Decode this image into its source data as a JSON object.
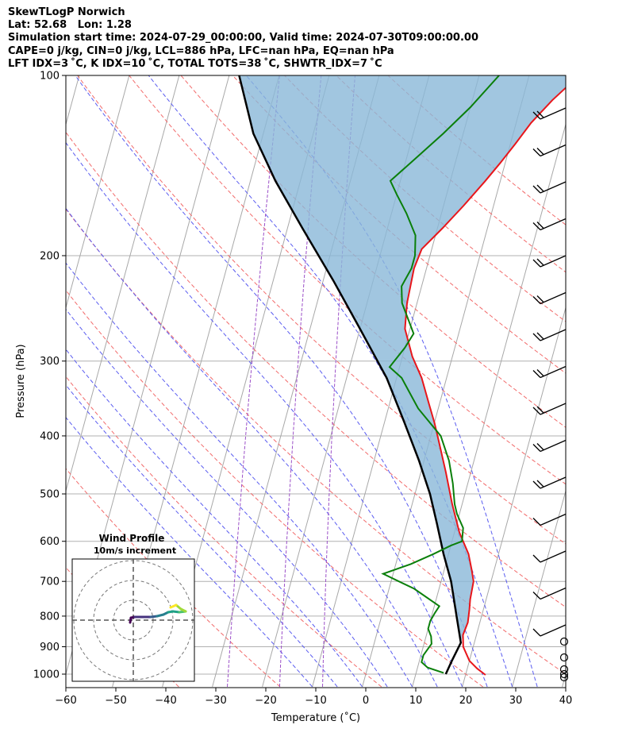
{
  "header": {
    "title": "SkewTLogP Norwich",
    "location": "Lat: 52.68   Lon: 1.28",
    "times": "Simulation start time: 2024-07-29_00:00:00, Valid time: 2024-07-30T09:00:00.00",
    "indices1": "CAPE=0 j/kg, CIN=0 j/kg, LCL=886 hPa, LFC=nan hPa, EQ=nan hPa",
    "indices2": "LFT IDX=3 ˚C, K IDX=10 ˚C, TOTAL TOTS=38 ˚C, SHWTR_IDX=7 ˚C"
  },
  "chart_data": {
    "type": "line",
    "title": "SkewTLogP Norwich",
    "xlabel": "Temperature (˚C)",
    "ylabel": "Pressure (hPa)",
    "xlim": [
      -60,
      40
    ],
    "ylim": [
      1050,
      100
    ],
    "y_scale": "log",
    "x_ticks": [
      "−60",
      "−50",
      "−40",
      "−30",
      "−20",
      "−10",
      "0",
      "10",
      "20",
      "30",
      "40"
    ],
    "x_tick_values": [
      -60,
      -50,
      -40,
      -30,
      -20,
      -10,
      0,
      10,
      20,
      30,
      40
    ],
    "y_ticks": [
      1000,
      900,
      800,
      700,
      600,
      500,
      400,
      300,
      200,
      100
    ],
    "grid": true,
    "series": [
      {
        "kind": "temperature",
        "color": "#e8161b",
        "points": [
          [
            24,
            1003
          ],
          [
            22,
            979
          ],
          [
            20,
            950
          ],
          [
            18,
            900
          ],
          [
            17.3,
            860
          ],
          [
            17.6,
            820
          ],
          [
            17.2,
            780
          ],
          [
            16.8,
            750
          ],
          [
            16.5,
            700
          ],
          [
            15.5,
            670
          ],
          [
            14,
            630
          ],
          [
            11,
            580
          ],
          [
            8,
            520
          ],
          [
            5,
            460
          ],
          [
            2,
            410
          ],
          [
            0,
            380
          ],
          [
            -2,
            355
          ],
          [
            -5,
            320
          ],
          [
            -8,
            295
          ],
          [
            -11,
            265
          ],
          [
            -12,
            240
          ],
          [
            -12.5,
            210
          ],
          [
            -12,
            195
          ],
          [
            -9,
            180
          ],
          [
            -6,
            165
          ],
          [
            -3,
            150
          ],
          [
            -1,
            140
          ],
          [
            1,
            130
          ],
          [
            3,
            120
          ],
          [
            6,
            110
          ],
          [
            10,
            100
          ]
        ]
      },
      {
        "kind": "dewpoint",
        "color": "#0a7f0a",
        "points": [
          [
            15.5,
            995
          ],
          [
            12,
            975
          ],
          [
            10.5,
            955
          ],
          [
            10.5,
            930
          ],
          [
            11.5,
            890
          ],
          [
            11,
            865
          ],
          [
            10,
            840
          ],
          [
            10,
            815
          ],
          [
            10.5,
            790
          ],
          [
            11,
            770
          ],
          [
            5,
            720
          ],
          [
            -2,
            680
          ],
          [
            3,
            655
          ],
          [
            7,
            630
          ],
          [
            10,
            610
          ],
          [
            12,
            600
          ],
          [
            11.5,
            570
          ],
          [
            9.5,
            540
          ],
          [
            8.5,
            520
          ],
          [
            7,
            480
          ],
          [
            5,
            440
          ],
          [
            2,
            400
          ],
          [
            -4,
            360
          ],
          [
            -9,
            320
          ],
          [
            -12,
            307
          ],
          [
            -10,
            285
          ],
          [
            -9,
            270
          ],
          [
            -13,
            240
          ],
          [
            -14,
            225
          ],
          [
            -13,
            210
          ],
          [
            -13,
            200
          ],
          [
            -14,
            185
          ],
          [
            -17,
            170
          ],
          [
            -20,
            158
          ],
          [
            -22,
            150
          ],
          [
            -18,
            137
          ],
          [
            -14,
            125
          ],
          [
            -10,
            113
          ],
          [
            -6,
            100
          ]
        ]
      },
      {
        "kind": "parcel",
        "color": "#000000",
        "points": [
          [
            16,
            1000
          ],
          [
            16.5,
            950
          ],
          [
            17.3,
            886
          ],
          [
            15,
            800
          ],
          [
            12,
            700
          ],
          [
            9,
            630
          ],
          [
            6,
            560
          ],
          [
            3,
            500
          ],
          [
            -1,
            440
          ],
          [
            -6,
            380
          ],
          [
            -12,
            320
          ],
          [
            -20,
            265
          ],
          [
            -28,
            220
          ],
          [
            -37,
            180
          ],
          [
            -45,
            150
          ],
          [
            -52,
            125
          ],
          [
            -58,
            100
          ]
        ]
      }
    ],
    "hodograph": {
      "title": "Wind Profile",
      "subtitle": "10m/s increment"
    }
  }
}
